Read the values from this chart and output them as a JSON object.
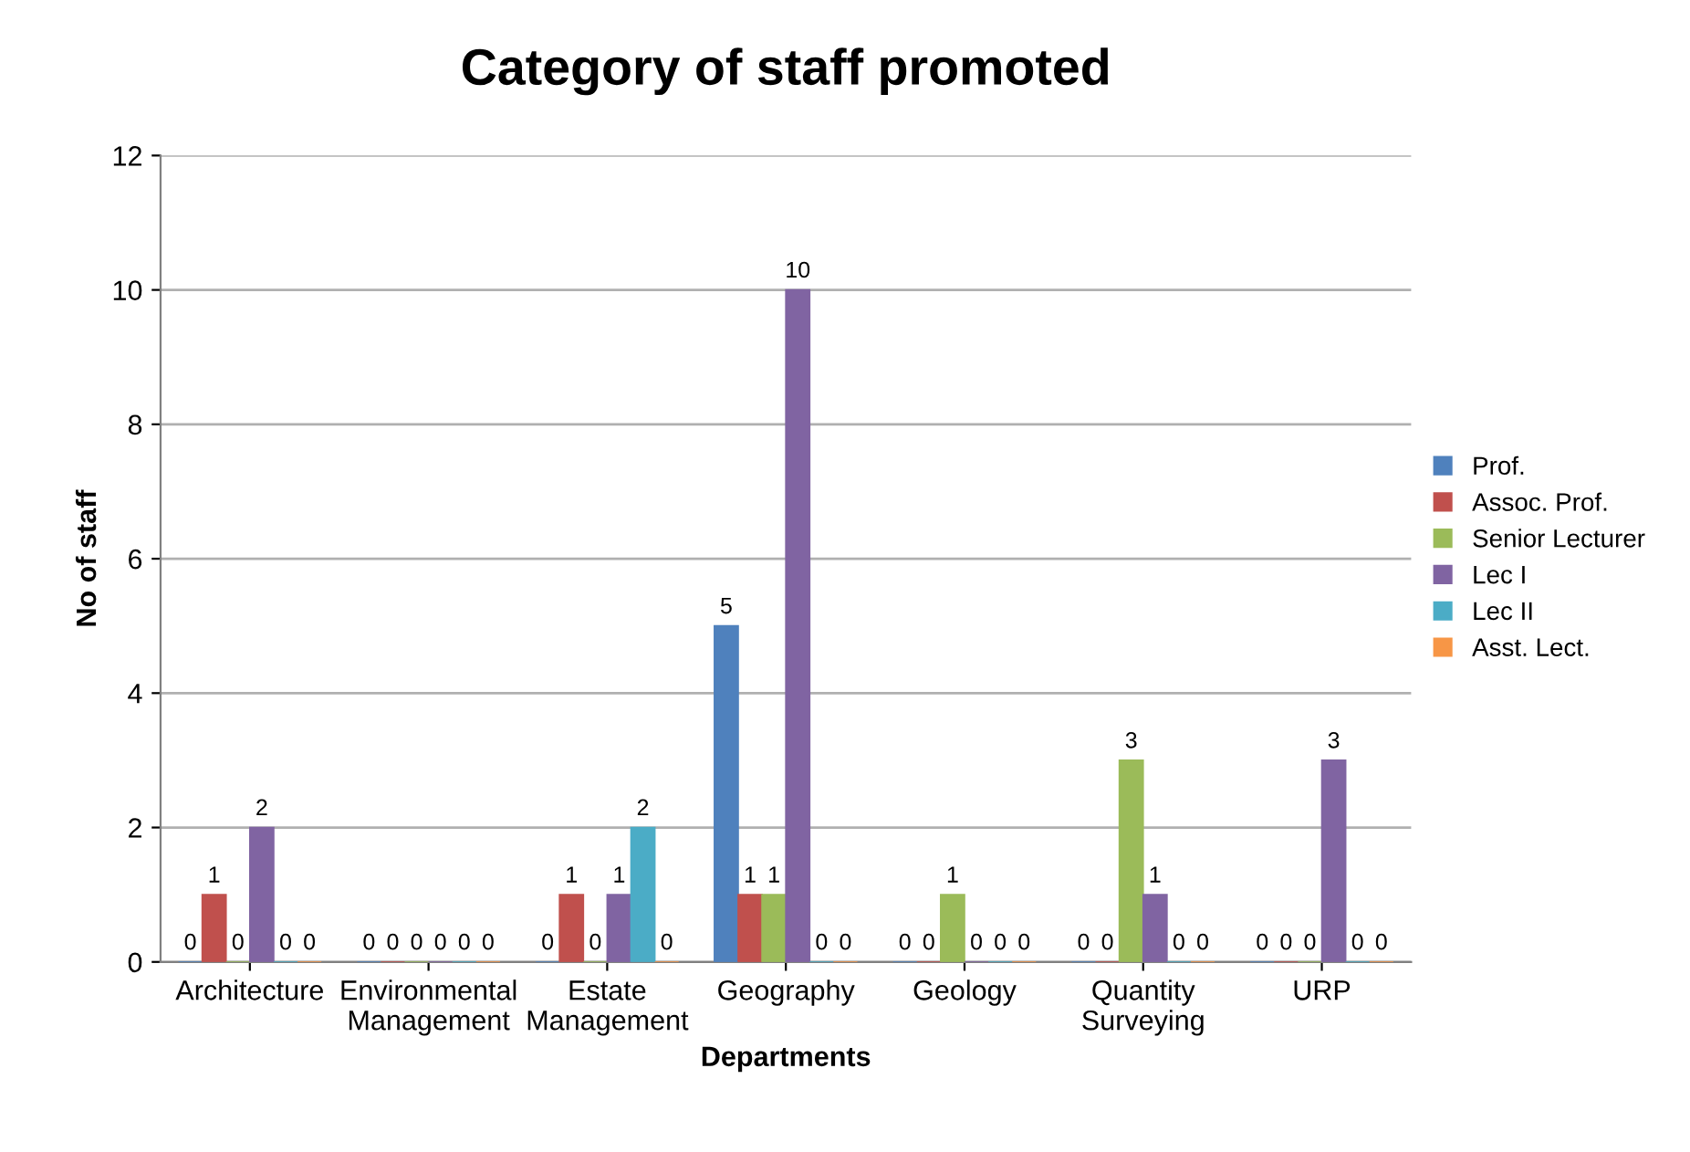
{
  "chart_data": {
    "type": "bar",
    "title": "Category of staff promoted",
    "xlabel": "Departments",
    "ylabel": "No of staff",
    "categories": [
      "Architecture",
      "Environmental Management",
      "Estate Management",
      "Geography",
      "Geology",
      "Quantity Surveying",
      "URP"
    ],
    "series": [
      {
        "name": "Prof.",
        "color": "#4f81bd",
        "values": [
          0,
          0,
          0,
          5,
          0,
          0,
          0
        ]
      },
      {
        "name": "Assoc. Prof.",
        "color": "#c0504d",
        "values": [
          1,
          0,
          1,
          1,
          0,
          0,
          0
        ]
      },
      {
        "name": "Senior Lecturer",
        "color": "#9bbb59",
        "values": [
          0,
          0,
          0,
          1,
          1,
          3,
          0
        ]
      },
      {
        "name": "Lec I",
        "color": "#8064a2",
        "values": [
          2,
          0,
          1,
          10,
          0,
          1,
          3
        ]
      },
      {
        "name": "Lec II",
        "color": "#4bacc6",
        "values": [
          0,
          0,
          2,
          0,
          0,
          0,
          0
        ]
      },
      {
        "name": "Asst. Lect.",
        "color": "#f79646",
        "values": [
          0,
          0,
          0,
          0,
          0,
          0,
          0
        ]
      }
    ],
    "ylim": [
      0,
      12
    ],
    "yticks": [
      0,
      2,
      4,
      6,
      8,
      10,
      12
    ],
    "grid": "y",
    "legend": "right",
    "data_labels": true
  }
}
